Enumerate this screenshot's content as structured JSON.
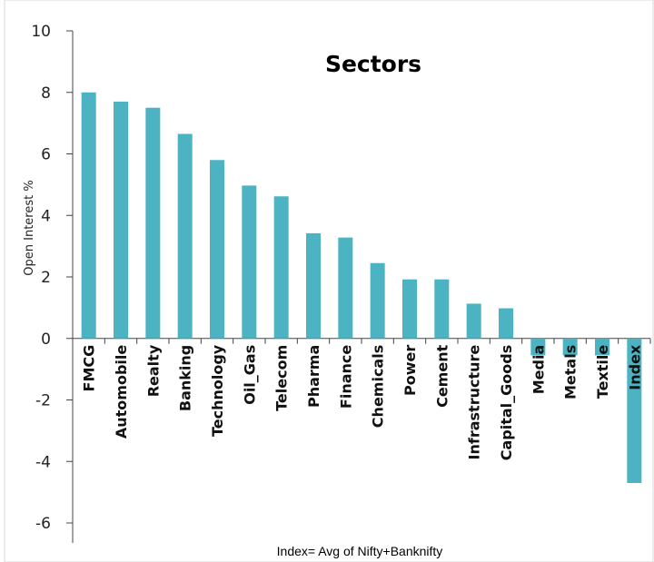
{
  "chart_data": {
    "type": "bar",
    "title": "Sectors",
    "ylabel": "Open Interest %",
    "xlabel": "",
    "footnote": "Index= Avg of Nifty+Banknifty",
    "ylim": [
      -6,
      10
    ],
    "yticks": [
      10,
      8,
      6,
      4,
      2,
      0,
      -2,
      -4,
      -6
    ],
    "bar_color": "#4BB3C2",
    "grid": false,
    "categories": [
      "FMCG",
      "Automobile",
      "Realty",
      "Banking",
      "Technology",
      "Oil_Gas",
      "Telecom",
      "Pharma",
      "Finance",
      "Chemicals",
      "Power",
      "Cement",
      "Infrastructure",
      "Capital_Goods",
      "Media",
      "Metals",
      "Textile",
      "Index"
    ],
    "values": [
      8.0,
      7.7,
      7.5,
      6.65,
      5.8,
      4.97,
      4.62,
      3.42,
      3.28,
      2.45,
      1.92,
      1.92,
      1.13,
      0.98,
      -0.55,
      -0.55,
      -0.55,
      -4.7
    ]
  }
}
